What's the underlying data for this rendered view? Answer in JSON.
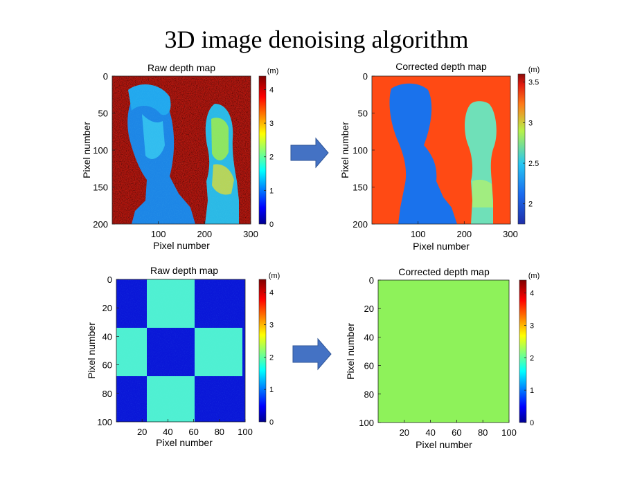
{
  "page": {
    "title": "3D image denoising algorithm"
  },
  "colors": {
    "arrow_fill": "#4472C4",
    "arrow_stroke": "#2F5597",
    "colormap": "jet"
  },
  "chart_data": [
    {
      "type": "heatmap",
      "title": "Raw depth map",
      "xlabel": "Pixel number",
      "ylabel": "Pixel number",
      "xlim": [
        0,
        300
      ],
      "ylim": [
        0,
        200
      ],
      "xticks": [
        100,
        200,
        300
      ],
      "yticks": [
        0,
        50,
        100,
        150,
        200
      ],
      "colorbar": {
        "unit": "(m)",
        "range": [
          0,
          4.4
        ],
        "ticks": [
          0,
          1,
          2,
          3,
          4
        ]
      },
      "content": "Noisy depth image of two busts: background about 4.3 m, busts about 1.5-2.5 m, heavy speckle noise",
      "background_value": 4.3
    },
    {
      "type": "heatmap",
      "title": "Corrected depth map",
      "xlabel": "Pixel number",
      "ylabel": "Pixel number",
      "xlim": [
        0,
        300
      ],
      "ylim": [
        0,
        200
      ],
      "xticks": [
        100,
        200,
        300
      ],
      "yticks": [
        0,
        50,
        100,
        150,
        200
      ],
      "colorbar": {
        "unit": "(m)",
        "range": [
          1.75,
          3.6
        ],
        "ticks": [
          2,
          2.5,
          3,
          3.5
        ]
      },
      "content": "Denoised depth image of two busts: background about 3.3 m, left bust about 2.0-2.2 m, right bust about 2.6 m",
      "background_value": 3.3
    },
    {
      "type": "heatmap",
      "title": "Raw depth map",
      "xlabel": "Pixel number",
      "ylabel": "Pixel number",
      "xlim": [
        0,
        100
      ],
      "ylim": [
        0,
        100
      ],
      "xticks": [
        20,
        40,
        60,
        80,
        100
      ],
      "yticks": [
        0,
        20,
        40,
        60,
        80,
        100
      ],
      "colorbar": {
        "unit": "(m)",
        "range": [
          0,
          4.4
        ],
        "ticks": [
          0,
          1,
          2,
          3,
          4
        ]
      },
      "content": "3x3 checkerboard of depth values about 0.4 m and 1.8 m",
      "checkerboard_values": [
        0.4,
        1.8
      ]
    },
    {
      "type": "heatmap",
      "title": "Corrected depth map",
      "xlabel": "Pixel number",
      "ylabel": "Pixel number",
      "xlim": [
        0,
        100
      ],
      "ylim": [
        0,
        100
      ],
      "xticks": [
        20,
        40,
        60,
        80,
        100
      ],
      "yticks": [
        0,
        20,
        40,
        60,
        80,
        100
      ],
      "colorbar": {
        "unit": "(m)",
        "range": [
          0,
          4.4
        ],
        "ticks": [
          0,
          1,
          2,
          3,
          4
        ]
      },
      "content": "Uniform flat depth of about 2.4 m",
      "uniform_value": 2.4
    }
  ]
}
